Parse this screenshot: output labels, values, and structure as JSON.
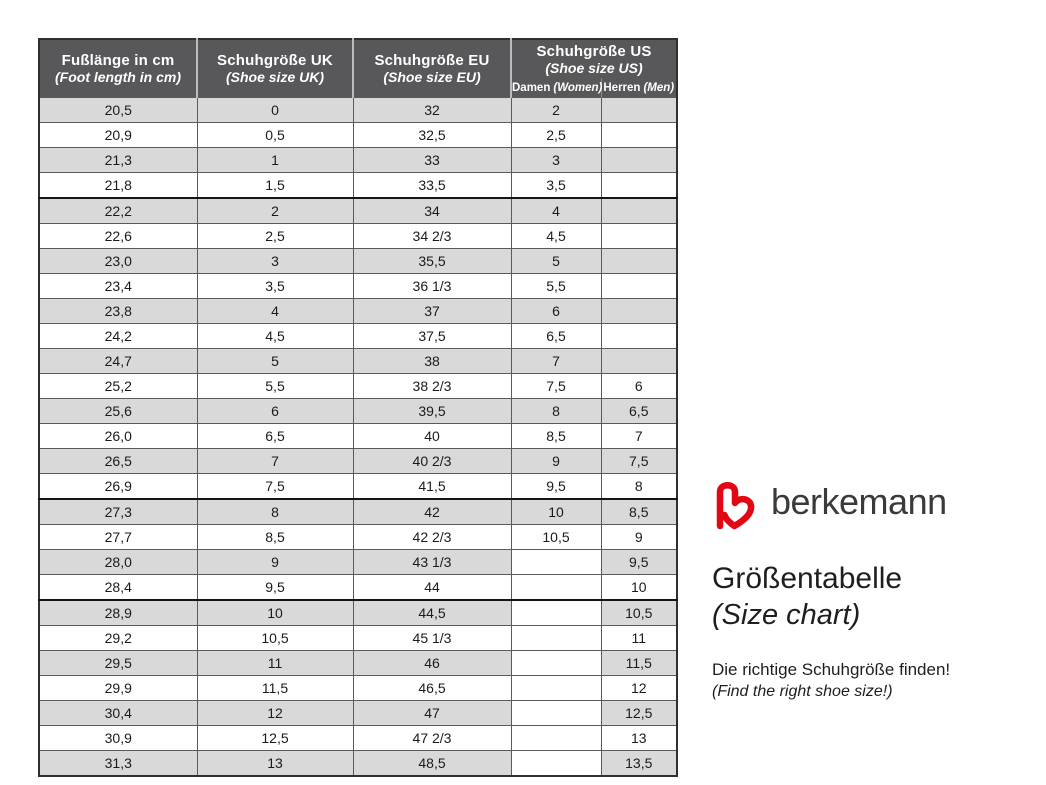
{
  "chart_data": {
    "type": "table",
    "title": "Größentabelle (Size chart)",
    "columns": [
      "Fußlänge in cm (Foot length in cm)",
      "Schuhgröße UK (Shoe size UK)",
      "Schuhgröße EU (Shoe size EU)",
      "Schuhgröße US Damen (Women)",
      "Schuhgröße US Herren (Men)"
    ],
    "rows": [
      [
        "20,5",
        "0",
        "32",
        "2",
        ""
      ],
      [
        "20,9",
        "0,5",
        "32,5",
        "2,5",
        ""
      ],
      [
        "21,3",
        "1",
        "33",
        "3",
        ""
      ],
      [
        "21,8",
        "1,5",
        "33,5",
        "3,5",
        ""
      ],
      [
        "22,2",
        "2",
        "34",
        "4",
        ""
      ],
      [
        "22,6",
        "2,5",
        "34 2/3",
        "4,5",
        ""
      ],
      [
        "23,0",
        "3",
        "35,5",
        "5",
        ""
      ],
      [
        "23,4",
        "3,5",
        "36 1/3",
        "5,5",
        ""
      ],
      [
        "23,8",
        "4",
        "37",
        "6",
        ""
      ],
      [
        "24,2",
        "4,5",
        "37,5",
        "6,5",
        ""
      ],
      [
        "24,7",
        "5",
        "38",
        "7",
        ""
      ],
      [
        "25,2",
        "5,5",
        "38 2/3",
        "7,5",
        "6"
      ],
      [
        "25,6",
        "6",
        "39,5",
        "8",
        "6,5"
      ],
      [
        "26,0",
        "6,5",
        "40",
        "8,5",
        "7"
      ],
      [
        "26,5",
        "7",
        "40 2/3",
        "9",
        "7,5"
      ],
      [
        "26,9",
        "7,5",
        "41,5",
        "9,5",
        "8"
      ],
      [
        "27,3",
        "8",
        "42",
        "10",
        "8,5"
      ],
      [
        "27,7",
        "8,5",
        "42 2/3",
        "10,5",
        "9"
      ],
      [
        "28,0",
        "9",
        "43 1/3",
        "",
        "9,5"
      ],
      [
        "28,4",
        "9,5",
        "44",
        "",
        "10"
      ],
      [
        "28,9",
        "10",
        "44,5",
        "",
        "10,5"
      ],
      [
        "29,2",
        "10,5",
        "45 1/3",
        "",
        "11"
      ],
      [
        "29,5",
        "11",
        "46",
        "",
        "11,5"
      ],
      [
        "29,9",
        "11,5",
        "46,5",
        "",
        "12"
      ],
      [
        "30,4",
        "12",
        "47",
        "",
        "12,5"
      ],
      [
        "30,9",
        "12,5",
        "47 2/3",
        "",
        "13"
      ],
      [
        "31,3",
        "13",
        "48,5",
        "",
        "13,5"
      ]
    ],
    "thick_divider_after_rows": [
      4,
      16,
      20
    ],
    "layout": {
      "stripe_first_row": true,
      "stripe_color": "#d9d9d9"
    }
  },
  "table_header": {
    "foot_length_de": "Fußlänge in cm",
    "foot_length_en": "(Foot length in cm)",
    "uk_de": "Schuhgröße UK",
    "uk_en": "(Shoe size UK)",
    "eu_de": "Schuhgröße EU",
    "eu_en": "(Shoe size EU)",
    "us_de": "Schuhgröße US",
    "us_en": "(Shoe size US)",
    "us_women_de": "Damen",
    "us_women_en": "(Women)",
    "us_men_de": "Herren",
    "us_men_en": "(Men)"
  },
  "brand": {
    "wordmark": "berkemann",
    "logo_icon": "berkemann-b-heart-mark",
    "logo_color": "#e30613",
    "wordmark_color": "#3a3a38"
  },
  "panel": {
    "title_de": "Größentabelle",
    "title_en": "(Size chart)",
    "tagline_de": "Die richtige Schuhgröße finden!",
    "tagline_en": "(Find the right shoe size!)"
  },
  "colors": {
    "header_bg": "#58585a",
    "header_text": "#ffffff",
    "row_stripe": "#d9d9d9",
    "grid_line": "#5a5a5c",
    "text": "#1b1b1b"
  }
}
